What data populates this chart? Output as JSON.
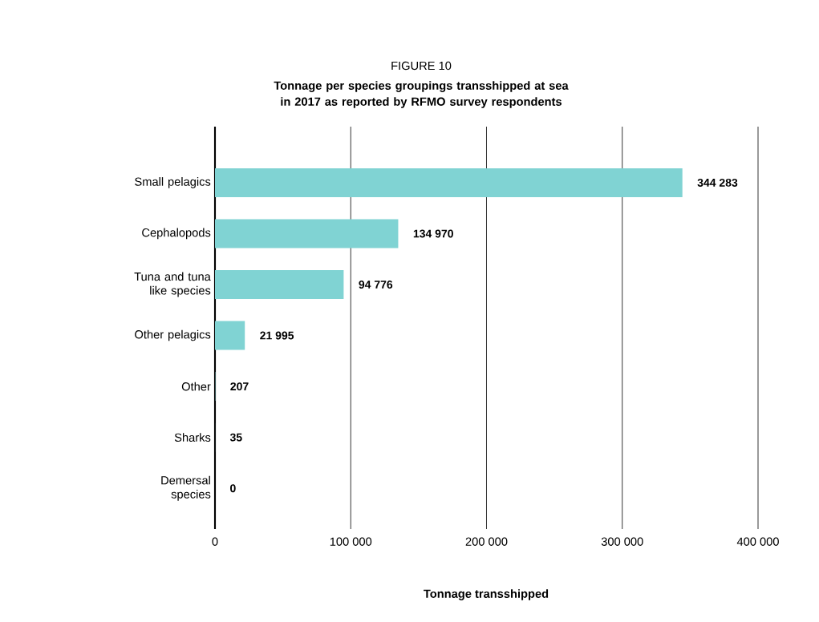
{
  "chart_data": {
    "type": "bar",
    "orientation": "horizontal",
    "title": "FIGURE 10",
    "subtitle": "Tonnage per species groupings transshipped at sea in 2017 as reported by RFMO survey respondents",
    "xlabel": "Tonnage transshipped",
    "categories": [
      "Small pelagics",
      "Cephalopods",
      "Tuna and tuna like species",
      "Other pelagics",
      "Other",
      "Sharks",
      "Demersal species"
    ],
    "values": [
      344283,
      134970,
      94776,
      21995,
      207,
      35,
      0
    ],
    "value_labels": [
      "344 283",
      "134 970",
      "94 776",
      "21 995",
      "207",
      "35",
      "0"
    ],
    "color": "#80d3d3",
    "xlim": [
      0,
      400000
    ],
    "xticks": [
      0,
      {
        "value": 100000,
        "label": "100 000"
      },
      {
        "value": 200000,
        "label": "200 000"
      },
      {
        "value": 300000,
        "label": "300 000"
      },
      {
        "value": 400000,
        "label": "400 000"
      }
    ],
    "grid": "x"
  }
}
